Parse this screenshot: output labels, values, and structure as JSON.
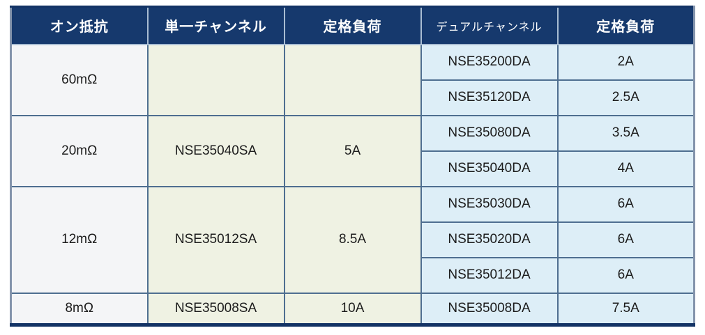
{
  "colors": {
    "header_bg": "#16396d",
    "header_text": "#ffffff",
    "col_resistance_bg": "#f4f5f7",
    "col_single_bg": "#eff2e3",
    "col_dual_bg": "#ddeef7",
    "border_inner": "#4e6e90",
    "border_header": "#a9bdd2",
    "border_outer": "#8494ac",
    "border_bottom": "#133365",
    "body_text": "#1c1c1c"
  },
  "table": {
    "headers": {
      "on_resistance": "オン抵抗",
      "single_channel": "単一チャンネル",
      "rated_load_single": "定格負荷",
      "dual_channel": "デュアルチャンネル",
      "rated_load_dual": "定格負荷"
    },
    "groups": [
      {
        "on_resistance": "60mΩ",
        "single_channel": "",
        "single_rated_load": "",
        "dual": [
          {
            "part": "NSE35200DA",
            "load": "2A"
          },
          {
            "part": "NSE35120DA",
            "load": "2.5A"
          }
        ]
      },
      {
        "on_resistance": "20mΩ",
        "single_channel": "NSE35040SA",
        "single_rated_load": "5A",
        "dual": [
          {
            "part": "NSE35080DA",
            "load": "3.5A"
          },
          {
            "part": "NSE35040DA",
            "load": "4A"
          }
        ]
      },
      {
        "on_resistance": "12mΩ",
        "single_channel": "NSE35012SA",
        "single_rated_load": "8.5A",
        "dual": [
          {
            "part": "NSE35030DA",
            "load": "6A"
          },
          {
            "part": "NSE35020DA",
            "load": "6A"
          },
          {
            "part": "NSE35012DA",
            "load": "6A"
          }
        ]
      },
      {
        "on_resistance": "8mΩ",
        "single_channel": "NSE35008SA",
        "single_rated_load": "10A",
        "dual": [
          {
            "part": "NSE35008DA",
            "load": "7.5A"
          }
        ]
      }
    ]
  }
}
